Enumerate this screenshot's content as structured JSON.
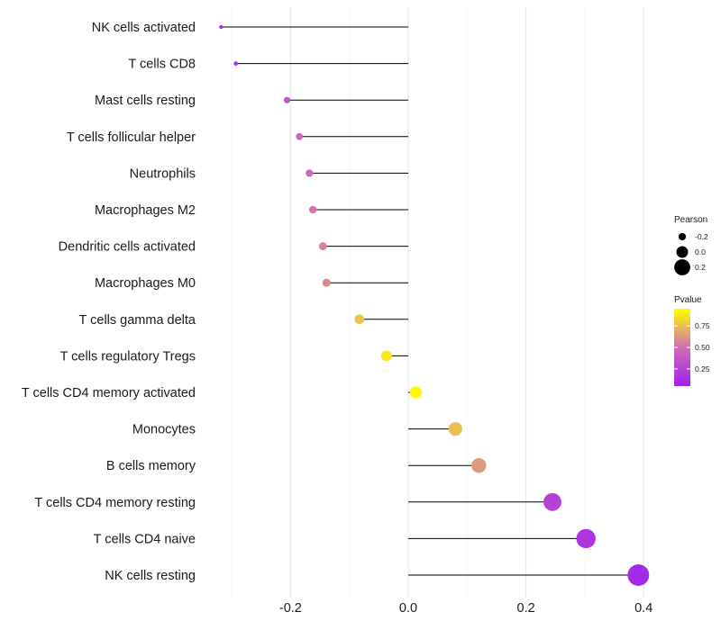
{
  "chart_data": {
    "type": "lollipop",
    "categories": [
      "NK cells activated",
      "T cells CD8",
      "Mast cells resting",
      "T cells follicular helper",
      "Neutrophils",
      "Macrophages M2",
      "Dendritic cells activated",
      "Macrophages M0",
      "T cells gamma delta",
      "T cells regulatory  Tregs ",
      "T cells CD4 memory activated",
      "Monocytes",
      "B cells memory",
      "T cells CD4 memory resting",
      "T cells CD4 naive",
      "NK cells resting"
    ],
    "values": [
      -0.318,
      -0.293,
      -0.206,
      -0.185,
      -0.168,
      -0.162,
      -0.145,
      -0.139,
      -0.083,
      -0.037,
      0.013,
      0.08,
      0.12,
      0.245,
      0.302,
      0.391
    ],
    "pvalues": [
      0.05,
      0.1,
      0.35,
      0.45,
      0.48,
      0.52,
      0.58,
      0.6,
      0.8,
      0.92,
      0.98,
      0.78,
      0.65,
      0.22,
      0.14,
      0.06
    ],
    "x_ticks": [
      "-0.2",
      "0.0",
      "0.2",
      "0.4"
    ],
    "x_tick_values": [
      -0.2,
      0.0,
      0.2,
      0.4
    ],
    "xlim": [
      -0.35,
      0.42
    ],
    "grid": true,
    "legend": {
      "size_title": "Pearson",
      "size_labels": [
        "-0.2",
        "0.0",
        "0.2"
      ],
      "size_values": [
        -0.2,
        0.0,
        0.2
      ],
      "color_title": "Pvalue",
      "color_labels": [
        "0.75",
        "0.50",
        "0.25"
      ],
      "color_values": [
        0.75,
        0.5,
        0.25
      ],
      "color_low": "#a020f0",
      "color_mid": "#cd6fb3",
      "color_high": "#ffff00",
      "placement": "right"
    }
  }
}
